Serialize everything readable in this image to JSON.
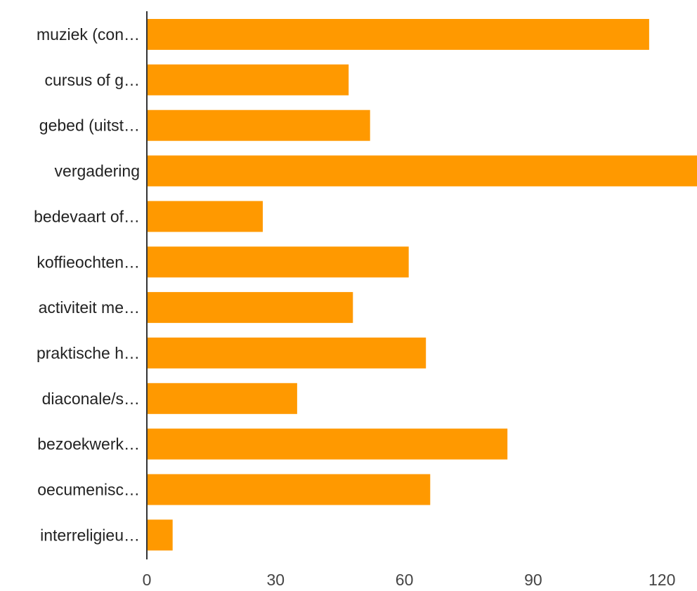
{
  "chart_data": {
    "type": "bar",
    "orientation": "horizontal",
    "categories": [
      "muziek (con…",
      "cursus of g…",
      "gebed (uitst…",
      "vergadering",
      "bedevaart of…",
      "koffieochten…",
      "activiteit me…",
      "praktische h…",
      "diaconale/s…",
      "bezoekwerk…",
      "oecumenisc…",
      "interreligieu…"
    ],
    "values": [
      117,
      47,
      52,
      130,
      27,
      61,
      48,
      65,
      35,
      84,
      66,
      6
    ],
    "xlim": [
      0,
      125
    ],
    "xticks": [
      0,
      30,
      60,
      90,
      120
    ],
    "xtick_labels": [
      "0",
      "30",
      "60",
      "90",
      "120"
    ],
    "bar_color": "#FF9900",
    "axis_color": "#333333",
    "grid": false,
    "legend": "none"
  }
}
